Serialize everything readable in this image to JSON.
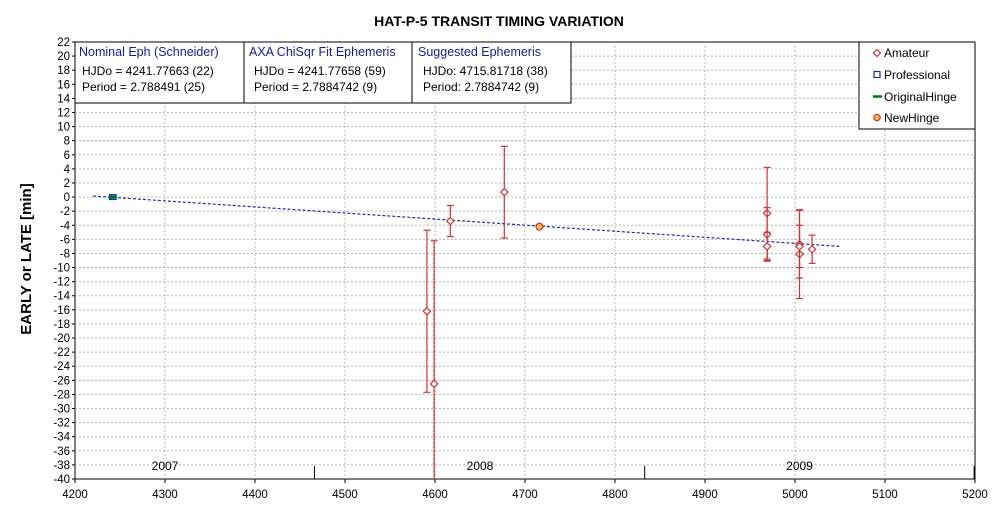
{
  "chart_data": {
    "type": "scatter",
    "title": "HAT-P-5 TRANSIT TIMING VARIATION",
    "xlabel": "",
    "ylabel": "EARLY or LATE [min]",
    "xlim": [
      4200,
      5200
    ],
    "ylim": [
      -40,
      22
    ],
    "x_ticks": [
      4200,
      4300,
      4400,
      4500,
      4600,
      4700,
      4800,
      4900,
      5000,
      5100,
      5200
    ],
    "y_ticks": [
      22,
      20,
      18,
      16,
      14,
      12,
      10,
      8,
      6,
      4,
      2,
      0,
      -2,
      -4,
      -6,
      -8,
      -10,
      -12,
      -14,
      -16,
      -18,
      -20,
      -22,
      -24,
      -26,
      -28,
      -30,
      -32,
      -34,
      -36,
      -38,
      -40
    ],
    "grid": true,
    "legend_position": "top-right",
    "year_labels": [
      {
        "label": "2007",
        "x": 4300
      },
      {
        "label": "2008",
        "x": 4650
      },
      {
        "label": "2009",
        "x": 5005
      }
    ],
    "year_dividers": [
      4466,
      4833,
      5199
    ],
    "info_boxes": [
      {
        "title": "Nominal Eph (Schneider)",
        "line1": "HJDo = 4241.77663 (22)",
        "line2": "Period = 2.788491 (25)"
      },
      {
        "title": "AXA ChiSqr Fit Ephemeris",
        "line1": "HJDo = 4241.77658 (59)",
        "line2": "Period = 2.7884742 (9)"
      },
      {
        "title": "Suggested Ephemeris",
        "line1": "HJDo:  4715.81718 (38)",
        "line2": "Period: 2.7884742 (9)"
      }
    ],
    "series": [
      {
        "name": "Amateur",
        "marker": "diamond",
        "color": "#cc3333",
        "points": [
          {
            "x": 4591,
            "y": -16.2,
            "err": 11.5
          },
          {
            "x": 4599,
            "y": -26.5,
            "err": 20.3
          },
          {
            "x": 4617,
            "y": -3.4,
            "err": 2.2
          },
          {
            "x": 4677,
            "y": 0.7,
            "err": 6.5
          },
          {
            "x": 4969,
            "y": -2.3,
            "err": 6.5
          },
          {
            "x": 4969,
            "y": -5.3,
            "err": 3.8
          },
          {
            "x": 4969,
            "y": -7.0,
            "err": 2.0
          },
          {
            "x": 5005,
            "y": -6.7,
            "err": 4.8
          },
          {
            "x": 5005,
            "y": -8.1,
            "err": 6.3
          },
          {
            "x": 5005,
            "y": -7.0,
            "err": 3.0
          },
          {
            "x": 5019,
            "y": -7.4,
            "err": 2.0
          }
        ]
      },
      {
        "name": "Professional",
        "marker": "square",
        "color": "#1f2f9f",
        "points": [
          {
            "x": 4241,
            "y": 0.0
          },
          {
            "x": 4243,
            "y": 0.0
          }
        ]
      },
      {
        "name": "OriginalHinge",
        "marker": "line",
        "color": "#007a00",
        "points": [
          {
            "x": 4240,
            "y": 0.0
          },
          {
            "x": 4244,
            "y": 0.0
          }
        ]
      },
      {
        "name": "NewHinge",
        "marker": "circle",
        "color": "#cc3333",
        "fill": "#f5c04a",
        "points": [
          {
            "x": 4716,
            "y": -4.2
          }
        ]
      }
    ],
    "trend_line": {
      "color": "#1f2f9f",
      "x": [
        4220,
        5050
      ],
      "y": [
        0.15,
        -7.0
      ]
    }
  }
}
